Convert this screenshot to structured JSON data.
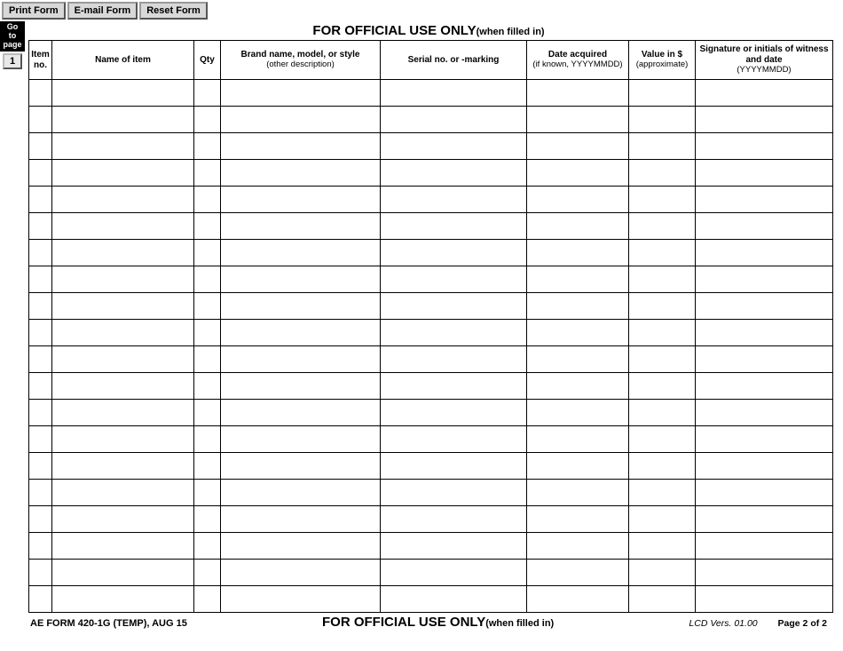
{
  "toolbar": {
    "print": "Print Form",
    "email": "E-mail Form",
    "reset": "Reset Form"
  },
  "nav": {
    "goto_label_l1": "Go",
    "goto_label_l2": "to",
    "goto_label_l3": "page",
    "goto_page": "1"
  },
  "banner": {
    "title": "FOR OFFICIAL USE ONLY",
    "sub": "(when filled in)"
  },
  "table": {
    "columns": [
      {
        "header": "Item no.",
        "sub": "",
        "class": "col0"
      },
      {
        "header": "Name of item",
        "sub": "",
        "class": "col1"
      },
      {
        "header": "Qty",
        "sub": "",
        "class": "col2"
      },
      {
        "header": "Brand name, model, or style",
        "sub": "(other description)",
        "class": "col3"
      },
      {
        "header": "Serial no. or -marking",
        "sub": "",
        "class": "col4"
      },
      {
        "header": "Date acquired",
        "sub": "(if known, YYYYMMDD)",
        "class": "col5"
      },
      {
        "header": "Value in $",
        "sub": "(approximate)",
        "class": "col6"
      },
      {
        "header": "Signature or initials of witness and date",
        "sub": "(YYYYMMDD)",
        "class": "col7"
      }
    ],
    "row_count": 20
  },
  "footer": {
    "form_id": "AE FORM 420-1G (TEMP), AUG 15",
    "banner_title": "FOR OFFICIAL USE ONLY",
    "banner_sub": "(when filled in)",
    "version": "LCD Vers. 01.00",
    "page": "Page 2 of 2"
  }
}
